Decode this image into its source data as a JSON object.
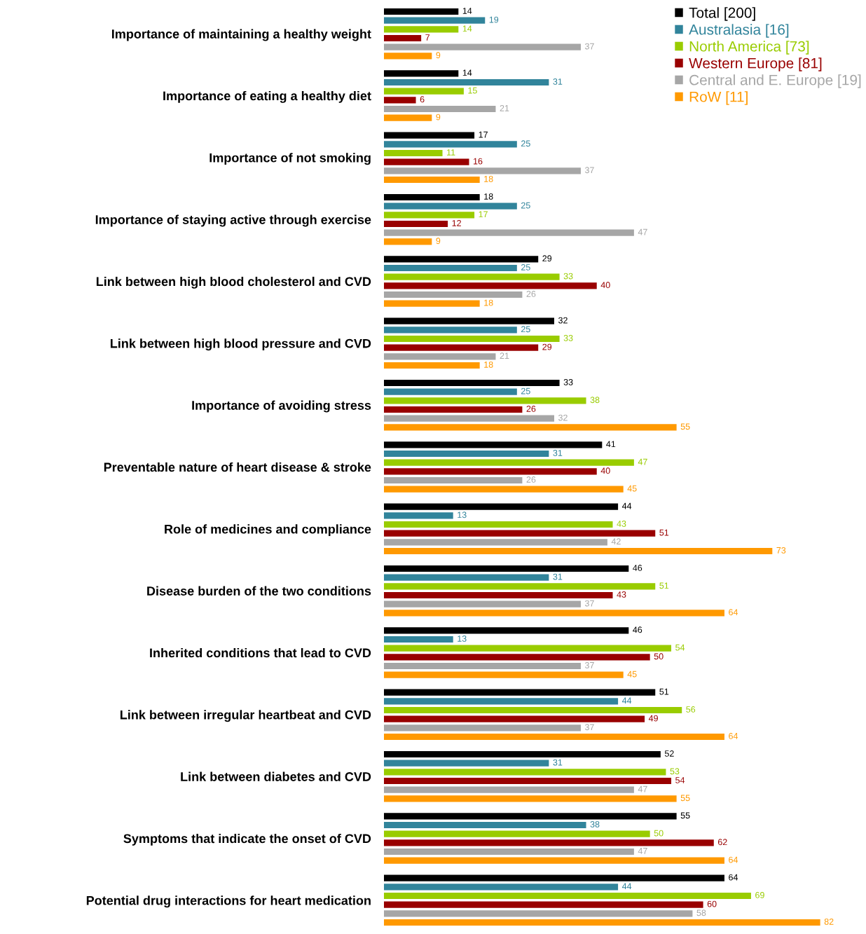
{
  "chart_data": {
    "type": "bar",
    "orientation": "horizontal",
    "categories": [
      "Importance of maintaining a healthy weight",
      "Importance of eating a healthy diet",
      "Importance of not smoking",
      "Importance of staying active through exercise",
      "Link between high blood cholesterol and CVD",
      "Link between high blood pressure and CVD",
      "Importance of avoiding stress",
      "Preventable nature of heart disease & stroke",
      "Role of medicines and compliance",
      "Disease burden of the two conditions",
      "Inherited conditions that lead to CVD",
      "Link between irregular heartbeat and CVD",
      "Link between diabetes and CVD",
      "Symptoms that indicate the onset of CVD",
      "Potential drug interactions for heart medication"
    ],
    "series": [
      {
        "name": "Total [200]",
        "color": "#000000",
        "values": [
          14,
          14,
          17,
          18,
          29,
          32,
          33,
          41,
          44,
          46,
          46,
          51,
          52,
          55,
          64
        ]
      },
      {
        "name": "Australasia [16]",
        "color": "#31849b",
        "values": [
          19,
          31,
          25,
          25,
          25,
          25,
          25,
          31,
          13,
          31,
          13,
          44,
          31,
          38,
          44
        ]
      },
      {
        "name": "North America [73]",
        "color": "#99cc00",
        "values": [
          14,
          15,
          11,
          17,
          33,
          33,
          38,
          47,
          43,
          51,
          54,
          56,
          53,
          50,
          69
        ]
      },
      {
        "name": "Western Europe [81]",
        "color": "#990000",
        "values": [
          7,
          6,
          16,
          12,
          40,
          29,
          26,
          40,
          51,
          43,
          50,
          49,
          54,
          62,
          60
        ]
      },
      {
        "name": "Central and E. Europe [19]",
        "color": "#a6a6a6",
        "values": [
          37,
          21,
          37,
          47,
          26,
          21,
          32,
          26,
          42,
          37,
          37,
          37,
          47,
          47,
          58
        ]
      },
      {
        "name": "RoW [11]",
        "color": "#ff9900",
        "values": [
          9,
          9,
          18,
          9,
          18,
          18,
          55,
          45,
          73,
          64,
          45,
          64,
          55,
          64,
          82
        ]
      }
    ],
    "data_labels": true,
    "tick_labels": "y",
    "legend": "top right"
  }
}
